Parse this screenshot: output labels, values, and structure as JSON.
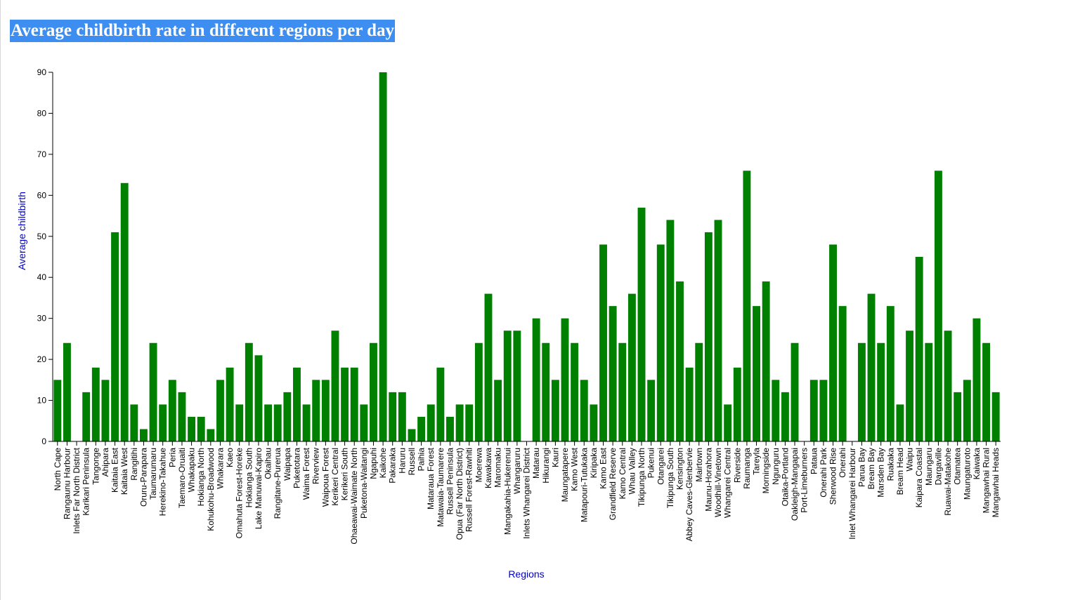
{
  "chart_data": {
    "type": "bar",
    "title": "Average childbirth rate in different regions per day",
    "xlabel": "Regions",
    "ylabel": "Average childbirth",
    "ylim": [
      0,
      90
    ],
    "yticks": [
      0,
      10,
      20,
      30,
      40,
      50,
      60,
      70,
      80,
      90
    ],
    "colors": {
      "bar": "#008000",
      "axis_label": "#0000cc",
      "title_bg": "#3d8ef0",
      "axis": "#000000"
    },
    "categories": [
      "North Cape",
      "Rangaunu Harbour",
      "Inlets Far North District",
      "Karikari Peninsula",
      "Tangonge",
      "Ahipara",
      "Kaitaia East",
      "Kaitaia West",
      "Rangitihi",
      "Oruru-Parapara",
      "Taumarumaru",
      "Herekino-Takahue",
      "Peria",
      "Taemaro-Oruaiti",
      "Whakapaku",
      "Hokianga North",
      "Kohukohu-Broadwood",
      "Whakarara",
      "Kaeo",
      "Omahuta Forest-Horeke",
      "Hokianga South",
      "Lake Manuwai-Kapiro",
      "Okaihau",
      "Rangitane-Purerua",
      "Waipapa",
      "Puketotara",
      "Waima Forest",
      "Riverview",
      "Waipoua Forest",
      "Kerikeri Central",
      "Kerikeri South",
      "Ohaeawai-Waimate North",
      "Puketona-Waitangi",
      "Ngapuhi",
      "Kaikohe",
      "Pakaraka",
      "Haruru",
      "Russell",
      "Paihia",
      "Mataraua Forest",
      "Matawaia-Taumarere",
      "Russell Peninsula",
      "Opua (Far North District)",
      "Russell Forest-Rawhiti",
      "Moerewa",
      "Kawakawa",
      "Maromaku",
      "Mangakahia-Hukerenui",
      "Whangaruru",
      "Inlets Whangarei District",
      "Matarau",
      "Hikurangi",
      "Kauri",
      "Maungatapere",
      "Kamo West",
      "Matapouri-Tutukaka",
      "Kiripaka",
      "Kamo East",
      "Grandfield Reserve",
      "Kamo Central",
      "Whau Valley",
      "Tikipunga North",
      "Pukenui",
      "Otangarei",
      "Tikipunga South",
      "Kensington",
      "Abbey Caves-Glenbervie",
      "Mairtown",
      "Maunu-Horahora",
      "Woodhill-Vinetown",
      "Whangarei Central",
      "Riverside",
      "Raumanga",
      "Tareyla",
      "Morningside",
      "Ngunguru",
      "Otaika-Portland",
      "Oakleigh-Mangapai",
      "Port-Limeburners",
      "Pataua",
      "Onerahi Park",
      "Sherwood Rise",
      "Onerahi",
      "Inlet Whangarei Harbour",
      "Parua Bay",
      "Bream Bay",
      "Marsden Bay",
      "Ruakaka",
      "Bream Head",
      "Waipu",
      "Kaipara Coastal",
      "Maungaru",
      "Dargaville",
      "Ruawai-Matakohe",
      "Otamatea",
      "Maungaturoto",
      "Kaiwaka",
      "Mangawhai Rural",
      "Mangawhai Heads"
    ],
    "values": [
      15,
      24,
      0,
      12,
      18,
      15,
      51,
      63,
      9,
      3,
      24,
      9,
      15,
      12,
      6,
      6,
      3,
      15,
      18,
      9,
      24,
      21,
      9,
      9,
      12,
      18,
      9,
      15,
      15,
      27,
      18,
      18,
      9,
      24,
      90,
      12,
      12,
      3,
      6,
      9,
      18,
      6,
      9,
      9,
      24,
      36,
      15,
      27,
      27,
      0,
      30,
      24,
      15,
      30,
      24,
      15,
      9,
      48,
      33,
      24,
      36,
      57,
      15,
      48,
      54,
      39,
      18,
      24,
      51,
      54,
      9,
      18,
      66,
      33,
      39,
      15,
      12,
      24,
      0,
      15,
      15,
      48,
      33,
      0,
      24,
      36,
      24,
      33,
      9,
      27,
      45,
      24,
      66,
      27,
      12,
      15,
      30,
      24,
      12
    ]
  }
}
